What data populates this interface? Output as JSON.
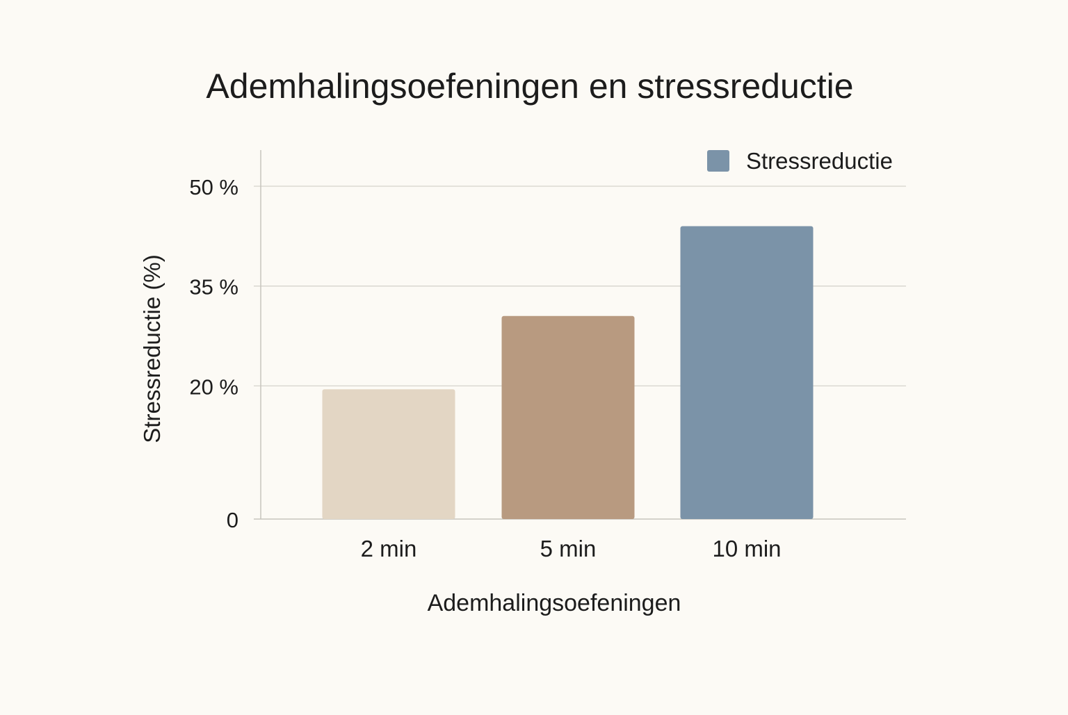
{
  "chart_data": {
    "type": "bar",
    "title": "Ademhalingsoefeningen en stressreductie",
    "xlabel": "Ademhalingsoefeningen",
    "ylabel": "Stressreductie (%)",
    "categories": [
      "2 min",
      "5 min",
      "10 min"
    ],
    "series": [
      {
        "name": "Stressreductie",
        "values": [
          19.5,
          30.5,
          44
        ],
        "colors": [
          "#e3d6c4",
          "#b89a80",
          "#7b93a8"
        ]
      }
    ],
    "ylim": [
      0,
      50
    ],
    "yticks": [
      0,
      20,
      35,
      50
    ],
    "ytick_labels": [
      "0",
      "20 %",
      "35 %",
      "50 %"
    ],
    "grid": true,
    "legend": {
      "position": "top-right",
      "color": "#7b93a8"
    }
  },
  "colors": {
    "background": "#fcfaf5",
    "gridline": "#d6d3cc",
    "axis": "#c7c4bd",
    "text": "#1c1c1c"
  }
}
